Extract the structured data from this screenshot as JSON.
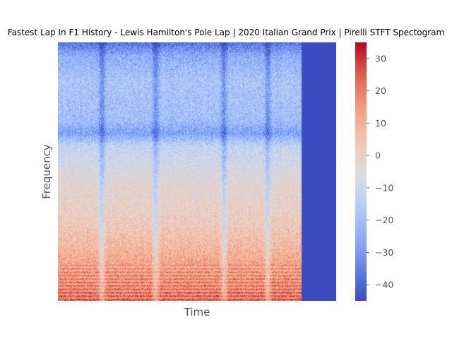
{
  "chart_data": {
    "type": "heatmap",
    "title": "Fastest Lap In F1 History - Lewis Hamilton's Pole Lap | 2020 Italian Grand Prix | Pirelli STFT Spectogram",
    "xlabel": "Time",
    "ylabel": "Frequency",
    "x_ticks_shown": false,
    "y_ticks_shown": false,
    "grid": false,
    "colormap": "coolwarm",
    "colorbar": {
      "vmin": -45,
      "vmax": 35,
      "ticks": [
        -40,
        -30,
        -20,
        -10,
        0,
        10,
        20,
        30
      ],
      "tick_labels": [
        "−40",
        "−30",
        "−20",
        "−10",
        "0",
        "10",
        "20",
        "30"
      ]
    },
    "signal_fraction_of_time_axis": 0.875,
    "padding_value": -45,
    "frequency_profile_db": [
      {
        "freq_frac": 0.0,
        "db": 22
      },
      {
        "freq_frac": 0.05,
        "db": 18
      },
      {
        "freq_frac": 0.12,
        "db": 14
      },
      {
        "freq_frac": 0.2,
        "db": 8
      },
      {
        "freq_frac": 0.3,
        "db": 2
      },
      {
        "freq_frac": 0.45,
        "db": -3
      },
      {
        "freq_frac": 0.6,
        "db": -12
      },
      {
        "freq_frac": 0.65,
        "db": -28
      },
      {
        "freq_frac": 0.7,
        "db": -20
      },
      {
        "freq_frac": 0.85,
        "db": -18
      },
      {
        "freq_frac": 0.95,
        "db": -25
      },
      {
        "freq_frac": 1.0,
        "db": -38
      }
    ],
    "quiet_time_fractions": [
      0.18,
      0.4,
      0.68,
      0.86
    ]
  }
}
